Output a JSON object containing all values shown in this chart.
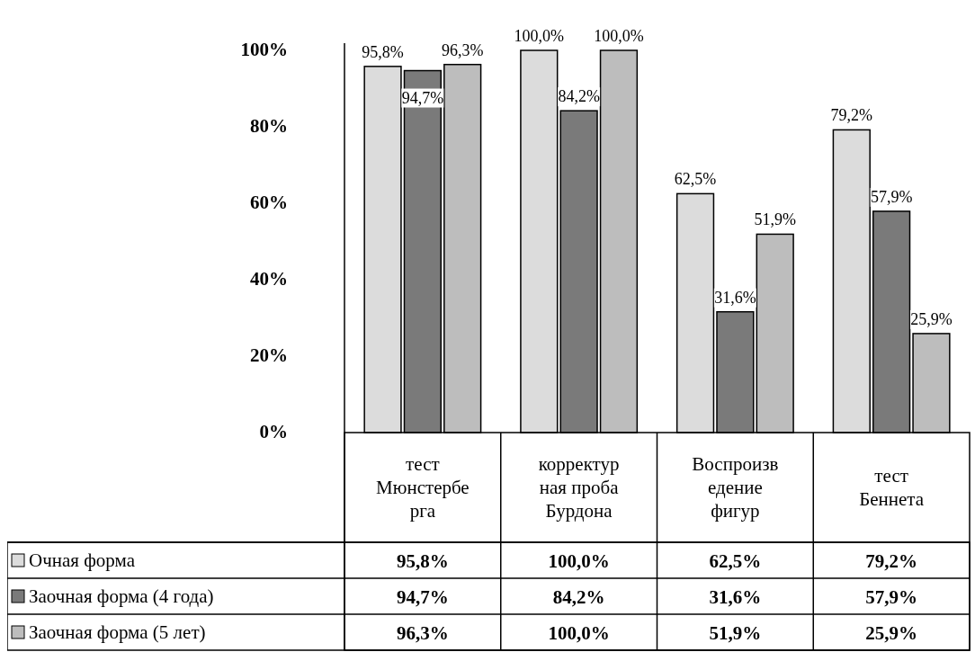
{
  "chart_data": {
    "type": "bar",
    "categories": [
      "тест Мюнстерберга",
      "корректурная проба Бурдона",
      "Воспроизведение фигур",
      "тест Беннета"
    ],
    "series": [
      {
        "name": "Очная форма",
        "color": "#dcdcdc",
        "values": [
          95.8,
          100.0,
          62.5,
          79.2
        ],
        "value_labels": [
          "95,8%",
          "100,0%",
          "62,5%",
          "79,2%"
        ]
      },
      {
        "name": "Заочная форма (4 года)",
        "color": "#7a7a7a",
        "values": [
          94.7,
          84.2,
          31.6,
          57.9
        ],
        "value_labels": [
          "94,7%",
          "84,2%",
          "31,6%",
          "57,9%"
        ]
      },
      {
        "name": "Заочная форма (5 лет)",
        "color": "#bdbdbd",
        "values": [
          96.3,
          100.0,
          51.9,
          25.9
        ],
        "value_labels": [
          "96,3%",
          "100,0%",
          "51,9%",
          "25,9%"
        ]
      }
    ],
    "ylim": [
      0,
      100
    ],
    "yticks": [
      {
        "value": 0,
        "label": "0%"
      },
      {
        "value": 20,
        "label": "20%"
      },
      {
        "value": 40,
        "label": "40%"
      },
      {
        "value": 60,
        "label": "60%"
      },
      {
        "value": 80,
        "label": "80%"
      },
      {
        "value": 100,
        "label": "100%"
      }
    ],
    "grid": false,
    "legend": "bottom"
  }
}
